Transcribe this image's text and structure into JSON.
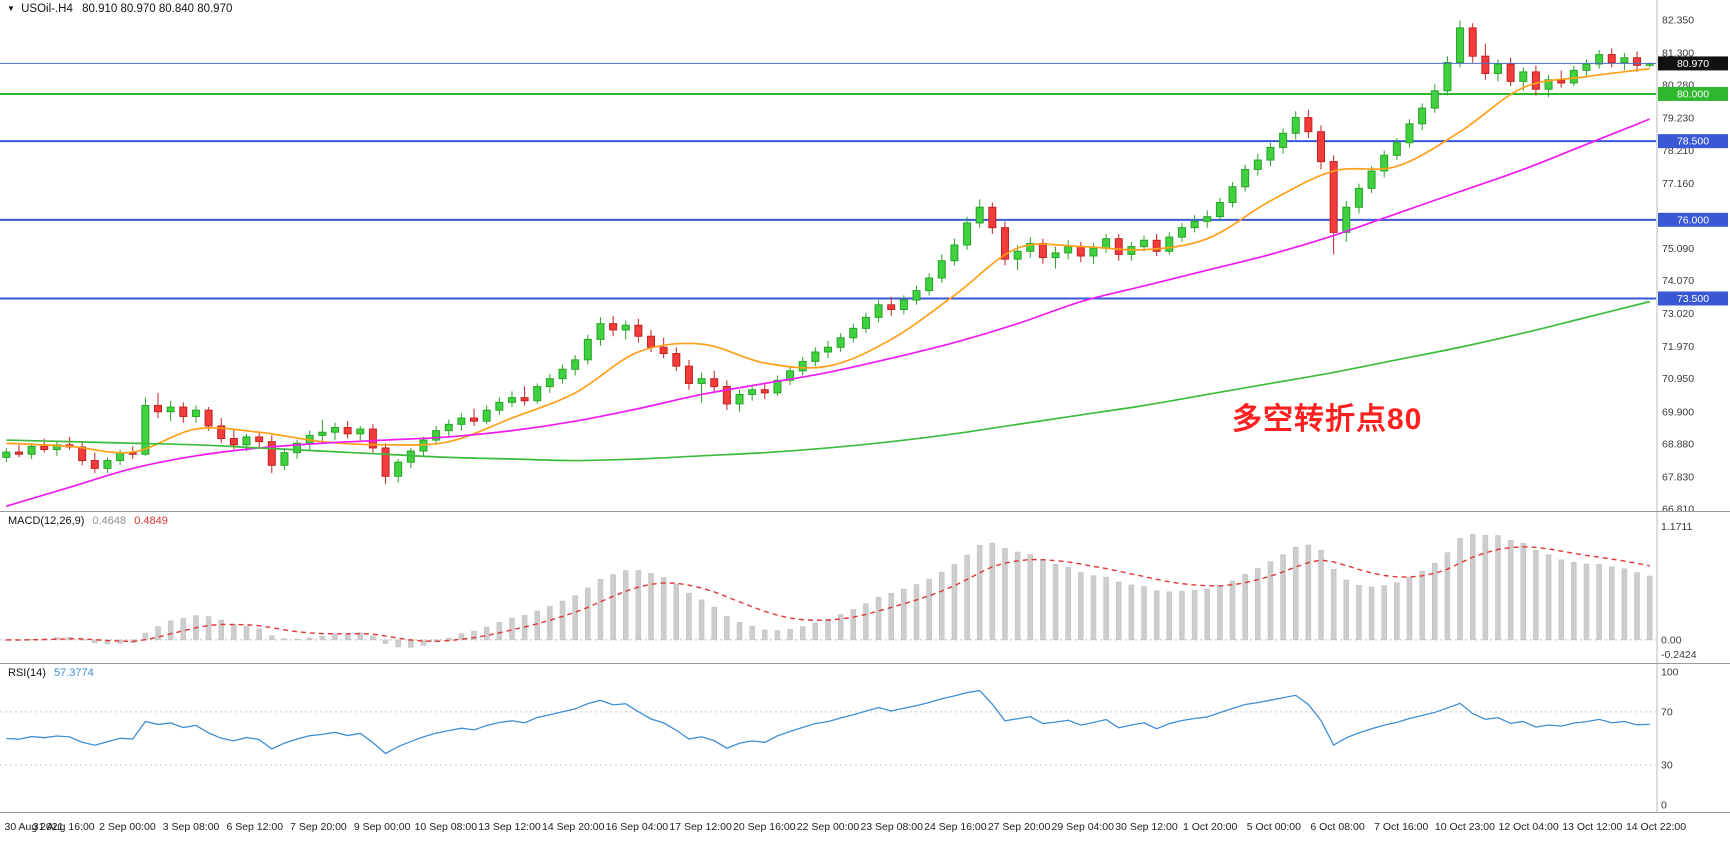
{
  "window": {
    "dropdown_icon": "▼",
    "symbol_timeframe": "USOil-.H4",
    "ohlc_readout": "80.910 80.970 80.840 80.970"
  },
  "annotation": {
    "text": "多空转折点80",
    "color": "#ff1f1f"
  },
  "main_chart": {
    "price_axis_labels": [
      "82.350",
      "81.300",
      "80.280",
      "79.230",
      "78.210",
      "77.160",
      "75.090",
      "74.070",
      "73.020",
      "71.970",
      "70.950",
      "69.900",
      "68.880",
      "67.830",
      "66.810"
    ],
    "hlines": [
      {
        "value": 80.0,
        "label": "80.000",
        "color": "#2db82d"
      },
      {
        "value": 78.5,
        "label": "78.500",
        "color": "#3a57d6"
      },
      {
        "value": 76.0,
        "label": "76.000",
        "color": "#3a57d6"
      },
      {
        "value": 73.5,
        "label": "73.500",
        "color": "#3a57d6"
      }
    ],
    "price_line": {
      "value": 80.97,
      "label": "80.970",
      "line_color": "#4a6fbf",
      "tag_bg": "#111111"
    },
    "up_color": "#3fd13f",
    "up_border": "#28a428",
    "down_color": "#f23b3b",
    "down_border": "#c32222"
  },
  "macd_panel": {
    "name": "MACD(12,26,9)",
    "value_main": "0.4648",
    "value_signal": "0.4849",
    "axis_top": "1.1711",
    "axis_zero": "0.00",
    "axis_bottom": "-0.2424",
    "histogram_color": "#cdcdcd",
    "signal_color": "#e03535"
  },
  "rsi_panel": {
    "name": "RSI(14)",
    "value": "57.3774",
    "axis_labels": [
      "100",
      "70",
      "30",
      "0"
    ],
    "levels": [
      70,
      30
    ],
    "line_color": "#3e8fd4"
  },
  "time_axis": {
    "labels": [
      "30 Aug 2021",
      "31 Aug 16:00",
      "2 Sep 00:00",
      "3 Sep 08:00",
      "6 Sep 12:00",
      "7 Sep 20:00",
      "9 Sep 00:00",
      "10 Sep 08:00",
      "13 Sep 12:00",
      "14 Sep 20:00",
      "16 Sep 04:00",
      "17 Sep 12:00",
      "20 Sep 16:00",
      "22 Sep 00:00",
      "23 Sep 08:00",
      "24 Sep 16:00",
      "27 Sep 20:00",
      "29 Sep 04:00",
      "30 Sep 12:00",
      "1 Oct 20:00",
      "5 Oct 00:00",
      "6 Oct 08:00",
      "7 Oct 16:00",
      "10 Oct 23:00",
      "12 Oct 04:00",
      "13 Oct 12:00",
      "14 Oct 22:00"
    ]
  },
  "chart_data": [
    {
      "type": "candlestick",
      "title": "USOil-.H4",
      "ylim": [
        66.81,
        82.35
      ],
      "horizontal_levels": [
        80.0,
        78.5,
        76.0,
        73.5
      ],
      "last_price": 80.97,
      "x_tick_labels": [
        "30 Aug 2021",
        "31 Aug 16:00",
        "2 Sep 00:00",
        "3 Sep 08:00",
        "6 Sep 12:00",
        "7 Sep 20:00",
        "9 Sep 00:00",
        "10 Sep 08:00",
        "13 Sep 12:00",
        "14 Sep 20:00",
        "16 Sep 04:00",
        "17 Sep 12:00",
        "20 Sep 16:00",
        "22 Sep 00:00",
        "23 Sep 08:00",
        "24 Sep 16:00",
        "27 Sep 20:00",
        "29 Sep 04:00",
        "30 Sep 12:00",
        "1 Oct 20:00",
        "5 Oct 00:00",
        "6 Oct 08:00",
        "7 Oct 16:00",
        "10 Oct 23:00",
        "12 Oct 04:00",
        "13 Oct 12:00",
        "14 Oct 22:00"
      ],
      "candles": [
        [
          68.45,
          68.75,
          68.3,
          68.62
        ],
        [
          68.62,
          68.85,
          68.45,
          68.55
        ],
        [
          68.55,
          68.9,
          68.4,
          68.8
        ],
        [
          68.8,
          69.05,
          68.6,
          68.7
        ],
        [
          68.7,
          68.95,
          68.5,
          68.85
        ],
        [
          68.85,
          69.1,
          68.7,
          68.78
        ],
        [
          68.78,
          68.95,
          68.2,
          68.35
        ],
        [
          68.35,
          68.6,
          67.95,
          68.1
        ],
        [
          68.1,
          68.45,
          67.95,
          68.35
        ],
        [
          68.35,
          68.7,
          68.2,
          68.6
        ],
        [
          68.6,
          68.8,
          68.4,
          68.55
        ],
        [
          68.55,
          70.35,
          68.5,
          70.1
        ],
        [
          70.1,
          70.5,
          69.7,
          69.9
        ],
        [
          69.9,
          70.25,
          69.6,
          70.05
        ],
        [
          70.05,
          70.2,
          69.55,
          69.75
        ],
        [
          69.75,
          70.1,
          69.55,
          69.95
        ],
        [
          69.95,
          70.05,
          69.3,
          69.45
        ],
        [
          69.45,
          69.7,
          68.9,
          69.05
        ],
        [
          69.05,
          69.35,
          68.7,
          68.85
        ],
        [
          68.85,
          69.2,
          68.65,
          69.1
        ],
        [
          69.1,
          69.25,
          68.75,
          68.95
        ],
        [
          68.95,
          69.15,
          67.95,
          68.2
        ],
        [
          68.2,
          68.75,
          68.05,
          68.6
        ],
        [
          68.6,
          69.0,
          68.4,
          68.9
        ],
        [
          68.9,
          69.3,
          68.7,
          69.15
        ],
        [
          69.15,
          69.65,
          68.95,
          69.25
        ],
        [
          69.25,
          69.55,
          69.0,
          69.4
        ],
        [
          69.4,
          69.6,
          69.05,
          69.2
        ],
        [
          69.2,
          69.45,
          68.95,
          69.35
        ],
        [
          69.35,
          69.5,
          68.6,
          68.75
        ],
        [
          68.75,
          68.9,
          67.6,
          67.85
        ],
        [
          67.85,
          68.4,
          67.65,
          68.3
        ],
        [
          68.3,
          68.75,
          68.1,
          68.65
        ],
        [
          68.65,
          69.1,
          68.5,
          69.0
        ],
        [
          69.0,
          69.45,
          68.85,
          69.3
        ],
        [
          69.3,
          69.65,
          69.1,
          69.5
        ],
        [
          69.5,
          69.85,
          69.3,
          69.7
        ],
        [
          69.7,
          70.0,
          69.45,
          69.6
        ],
        [
          69.6,
          70.1,
          69.5,
          69.95
        ],
        [
          69.95,
          70.35,
          69.8,
          70.2
        ],
        [
          70.2,
          70.55,
          70.05,
          70.35
        ],
        [
          70.35,
          70.7,
          70.1,
          70.25
        ],
        [
          70.25,
          70.8,
          70.15,
          70.7
        ],
        [
          70.7,
          71.1,
          70.5,
          70.95
        ],
        [
          70.95,
          71.4,
          70.8,
          71.25
        ],
        [
          71.25,
          71.7,
          71.05,
          71.55
        ],
        [
          71.55,
          72.35,
          71.4,
          72.2
        ],
        [
          72.2,
          72.9,
          72.0,
          72.7
        ],
        [
          72.7,
          72.95,
          72.3,
          72.5
        ],
        [
          72.5,
          72.8,
          72.2,
          72.65
        ],
        [
          72.65,
          72.85,
          72.1,
          72.3
        ],
        [
          72.3,
          72.5,
          71.8,
          71.95
        ],
        [
          71.95,
          72.25,
          71.6,
          71.75
        ],
        [
          71.75,
          71.95,
          71.2,
          71.35
        ],
        [
          71.35,
          71.55,
          70.6,
          70.8
        ],
        [
          70.8,
          71.15,
          70.2,
          70.95
        ],
        [
          70.95,
          71.2,
          70.55,
          70.7
        ],
        [
          70.7,
          70.9,
          69.95,
          70.15
        ],
        [
          70.15,
          70.6,
          69.9,
          70.45
        ],
        [
          70.45,
          70.75,
          70.25,
          70.6
        ],
        [
          70.6,
          70.8,
          70.3,
          70.5
        ],
        [
          70.5,
          71.05,
          70.4,
          70.9
        ],
        [
          70.9,
          71.35,
          70.75,
          71.2
        ],
        [
          71.2,
          71.65,
          71.05,
          71.5
        ],
        [
          71.5,
          71.95,
          71.35,
          71.8
        ],
        [
          71.8,
          72.15,
          71.6,
          71.95
        ],
        [
          71.95,
          72.4,
          71.8,
          72.25
        ],
        [
          72.25,
          72.7,
          72.1,
          72.55
        ],
        [
          72.55,
          73.05,
          72.4,
          72.9
        ],
        [
          72.9,
          73.45,
          72.75,
          73.3
        ],
        [
          73.3,
          73.55,
          72.95,
          73.15
        ],
        [
          73.15,
          73.6,
          73.0,
          73.45
        ],
        [
          73.45,
          73.9,
          73.3,
          73.75
        ],
        [
          73.75,
          74.3,
          73.6,
          74.15
        ],
        [
          74.15,
          74.9,
          74.0,
          74.7
        ],
        [
          74.7,
          75.4,
          74.55,
          75.2
        ],
        [
          75.2,
          76.1,
          75.05,
          75.9
        ],
        [
          75.9,
          76.65,
          75.75,
          76.4
        ],
        [
          76.4,
          76.55,
          75.55,
          75.75
        ],
        [
          75.75,
          75.95,
          74.55,
          74.75
        ],
        [
          74.75,
          75.2,
          74.4,
          75.0
        ],
        [
          75.0,
          75.45,
          74.8,
          75.25
        ],
        [
          75.25,
          75.4,
          74.6,
          74.8
        ],
        [
          74.8,
          75.15,
          74.45,
          74.95
        ],
        [
          74.95,
          75.35,
          74.75,
          75.15
        ],
        [
          75.15,
          75.3,
          74.65,
          74.85
        ],
        [
          74.85,
          75.25,
          74.6,
          75.1
        ],
        [
          75.1,
          75.55,
          74.95,
          75.4
        ],
        [
          75.4,
          75.55,
          74.7,
          74.9
        ],
        [
          74.9,
          75.3,
          74.7,
          75.15
        ],
        [
          75.15,
          75.5,
          75.0,
          75.35
        ],
        [
          75.35,
          75.55,
          74.85,
          75.0
        ],
        [
          75.0,
          75.6,
          74.9,
          75.45
        ],
        [
          75.45,
          75.9,
          75.3,
          75.75
        ],
        [
          75.75,
          76.15,
          75.6,
          75.95
        ],
        [
          75.95,
          76.3,
          75.75,
          76.1
        ],
        [
          76.1,
          76.7,
          75.95,
          76.55
        ],
        [
          76.55,
          77.2,
          76.4,
          77.05
        ],
        [
          77.05,
          77.75,
          76.9,
          77.6
        ],
        [
          77.6,
          78.1,
          77.4,
          77.9
        ],
        [
          77.9,
          78.45,
          77.7,
          78.3
        ],
        [
          78.3,
          78.9,
          78.1,
          78.75
        ],
        [
          78.75,
          79.45,
          78.55,
          79.25
        ],
        [
          79.25,
          79.5,
          78.6,
          78.8
        ],
        [
          78.8,
          79.0,
          77.6,
          77.85
        ],
        [
          77.85,
          78.05,
          74.9,
          75.6
        ],
        [
          75.6,
          76.6,
          75.3,
          76.4
        ],
        [
          76.4,
          77.15,
          76.2,
          77.0
        ],
        [
          77.0,
          77.7,
          76.85,
          77.55
        ],
        [
          77.55,
          78.2,
          77.35,
          78.05
        ],
        [
          78.05,
          78.6,
          77.9,
          78.45
        ],
        [
          78.45,
          79.2,
          78.3,
          79.05
        ],
        [
          79.05,
          79.7,
          78.85,
          79.55
        ],
        [
          79.55,
          80.3,
          79.4,
          80.1
        ],
        [
          80.1,
          81.2,
          79.95,
          81.0
        ],
        [
          81.0,
          82.33,
          80.85,
          82.1
        ],
        [
          82.1,
          82.25,
          81.0,
          81.2
        ],
        [
          81.2,
          81.6,
          80.45,
          80.65
        ],
        [
          80.65,
          81.1,
          80.4,
          80.95
        ],
        [
          80.95,
          81.15,
          80.25,
          80.4
        ],
        [
          80.4,
          80.85,
          80.1,
          80.7
        ],
        [
          80.7,
          80.9,
          79.95,
          80.15
        ],
        [
          80.15,
          80.6,
          79.9,
          80.45
        ],
        [
          80.45,
          80.75,
          80.2,
          80.35
        ],
        [
          80.35,
          80.9,
          80.25,
          80.75
        ],
        [
          80.75,
          81.1,
          80.55,
          80.95
        ],
        [
          80.95,
          81.4,
          80.8,
          81.25
        ],
        [
          81.25,
          81.45,
          80.85,
          81.0
        ],
        [
          81.0,
          81.3,
          80.75,
          81.15
        ],
        [
          81.15,
          81.35,
          80.7,
          80.91
        ],
        [
          80.91,
          80.97,
          80.84,
          80.97
        ]
      ],
      "moving_averages": [
        {
          "name": "fast",
          "color": "#ff9f1a",
          "keyframe_step": 5,
          "values": [
            68.9,
            68.8,
            68.62,
            69.35,
            69.25,
            68.95,
            68.85,
            68.95,
            69.7,
            70.5,
            71.8,
            72.05,
            71.45,
            71.35,
            72.2,
            73.6,
            75.1,
            75.15,
            75.05,
            75.4,
            76.6,
            77.55,
            77.7,
            78.8,
            80.2,
            80.55,
            80.8
          ]
        },
        {
          "name": "mid",
          "color": "#f21af2",
          "keyframe_step": 5,
          "values": [
            66.9,
            67.5,
            68.1,
            68.5,
            68.75,
            68.9,
            69.0,
            69.1,
            69.3,
            69.6,
            70.0,
            70.45,
            70.8,
            71.15,
            71.6,
            72.1,
            72.7,
            73.4,
            73.9,
            74.4,
            74.9,
            75.5,
            76.2,
            76.9,
            77.6,
            78.4,
            79.2
          ]
        },
        {
          "name": "slow",
          "color": "#3dbb3d",
          "keyframe_step": 5,
          "values": [
            69.0,
            68.95,
            68.9,
            68.85,
            68.75,
            68.65,
            68.55,
            68.45,
            68.4,
            68.35,
            68.4,
            68.5,
            68.6,
            68.75,
            68.95,
            69.2,
            69.5,
            69.8,
            70.1,
            70.45,
            70.8,
            71.15,
            71.55,
            71.95,
            72.4,
            72.9,
            73.4
          ]
        }
      ]
    },
    {
      "type": "bar",
      "name": "MACD(12,26,9)",
      "params": {
        "fast": 12,
        "slow": 26,
        "signal": 9
      },
      "current_macd": 0.4648,
      "current_signal": 0.4849,
      "axis_range": [
        -0.2424,
        1.1711
      ],
      "derived_from": "closes of chart_data[0].candles"
    },
    {
      "type": "line",
      "name": "RSI(14)",
      "period": 14,
      "current": 57.3774,
      "axis_range": [
        0,
        100
      ],
      "levels": [
        30,
        70
      ],
      "derived_from": "closes of chart_data[0].candles"
    }
  ]
}
